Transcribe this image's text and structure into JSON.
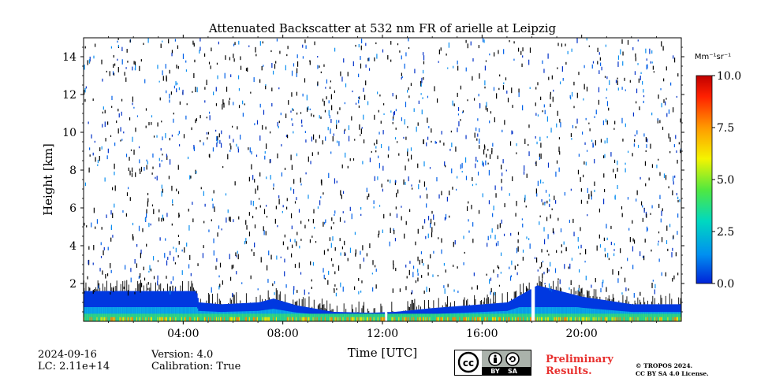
{
  "chart_data": {
    "type": "heatmap",
    "title": "Attenuated Backscatter at 532 nm FR of arielle at Leipzig",
    "xlabel": "Time [UTC]",
    "ylabel": "Height [km]",
    "xlim_hours": [
      0,
      24
    ],
    "ylim_km": [
      0,
      15
    ],
    "x_ticks": [
      "04:00",
      "08:00",
      "12:00",
      "16:00",
      "20:00"
    ],
    "x_tick_hours": [
      4,
      8,
      12,
      16,
      20
    ],
    "y_ticks": [
      2,
      4,
      6,
      8,
      10,
      12,
      14
    ],
    "colorbar": {
      "unit": "Mm⁻¹sr⁻¹",
      "range": [
        0.0,
        10.0
      ],
      "ticks": [
        "0.0",
        "2.5",
        "5.0",
        "7.5",
        "10.0"
      ],
      "tick_values": [
        0,
        2.5,
        5,
        7.5,
        10
      ],
      "colormap": [
        "#0022d8",
        "#0090f0",
        "#00d8c0",
        "#50e840",
        "#f4f400",
        "#ff9a00",
        "#ff2000",
        "#c00000"
      ]
    },
    "grid": false,
    "data_gaps_hours": [
      [
        12.05,
        12.18
      ],
      [
        17.95,
        18.1
      ]
    ],
    "boundary_layer_top_km": [
      [
        0.0,
        1.6
      ],
      [
        1.5,
        1.6
      ],
      [
        3.0,
        1.6
      ],
      [
        4.5,
        1.6
      ],
      [
        4.6,
        1.0
      ],
      [
        5.5,
        0.9
      ],
      [
        7.0,
        1.0
      ],
      [
        7.6,
        1.2
      ],
      [
        8.5,
        0.85
      ],
      [
        10.0,
        0.5
      ],
      [
        11.5,
        0.45
      ],
      [
        12.5,
        0.5
      ],
      [
        14.0,
        0.7
      ],
      [
        15.5,
        0.85
      ],
      [
        17.0,
        1.0
      ],
      [
        17.8,
        1.6
      ],
      [
        18.2,
        1.9
      ],
      [
        20.0,
        1.3
      ],
      [
        22.0,
        0.9
      ],
      [
        24.0,
        0.9
      ]
    ]
  },
  "footer": {
    "date": "2024-09-16",
    "lc": "LC: 2.11e+14",
    "version": "Version: 4.0",
    "calibration": "Calibration: True",
    "preliminary": [
      "Preliminary",
      "Results."
    ],
    "copyright": [
      "© TROPOS 2024.",
      "CC BY SA 4.0 License."
    ],
    "license_badge": [
      "BY",
      "SA"
    ],
    "license_icons": [
      "cc-icon",
      "attribution-icon",
      "share-alike-icon"
    ]
  }
}
